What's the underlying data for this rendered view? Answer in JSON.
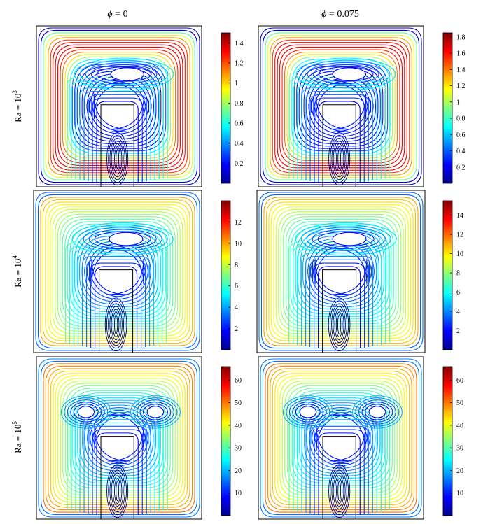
{
  "columns": [
    {
      "symbol": "ϕ",
      "eq": " = ",
      "value": "0"
    },
    {
      "symbol": "ϕ",
      "eq": " = ",
      "value": "0.075"
    }
  ],
  "rows": [
    {
      "base": "Ra = 10",
      "exp": "3"
    },
    {
      "base": "Ra = 10",
      "exp": "4"
    },
    {
      "base": "Ra = 10",
      "exp": "5"
    }
  ],
  "panels": [
    {
      "row": 0,
      "col": 0,
      "vortex": "single",
      "colorbar": {
        "min": 0,
        "max": 1.5,
        "ticks": [
          "0.2",
          "0.4",
          "0.6",
          "0.8",
          "1",
          "1.2",
          "1.4"
        ]
      }
    },
    {
      "row": 0,
      "col": 1,
      "vortex": "single",
      "colorbar": {
        "min": 0,
        "max": 1.85,
        "ticks": [
          "0.2",
          "0.4",
          "0.6",
          "0.8",
          "1",
          "1.2",
          "1.4",
          "1.6",
          "1.8"
        ]
      }
    },
    {
      "row": 1,
      "col": 0,
      "vortex": "single",
      "colorbar": {
        "min": 0,
        "max": 14,
        "ticks": [
          "2",
          "4",
          "6",
          "8",
          "10",
          "12"
        ]
      }
    },
    {
      "row": 1,
      "col": 1,
      "vortex": "single",
      "colorbar": {
        "min": 0,
        "max": 15.5,
        "ticks": [
          "2",
          "4",
          "6",
          "8",
          "10",
          "12",
          "14"
        ]
      }
    },
    {
      "row": 2,
      "col": 0,
      "vortex": "double",
      "colorbar": {
        "min": 0,
        "max": 66,
        "ticks": [
          "10",
          "20",
          "30",
          "40",
          "50",
          "60"
        ]
      }
    },
    {
      "row": 2,
      "col": 1,
      "vortex": "double",
      "colorbar": {
        "min": 0,
        "max": 66,
        "ticks": [
          "10",
          "20",
          "30",
          "40",
          "50",
          "60"
        ]
      }
    }
  ],
  "colors": {
    "colormap": "jet",
    "frame": "#000000",
    "background": "#ffffff"
  }
}
